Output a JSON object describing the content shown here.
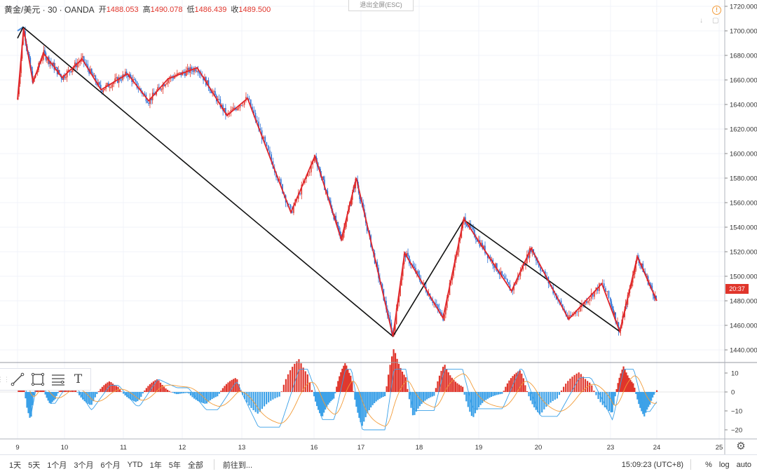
{
  "header": {
    "symbol": "黄金/美元 · 30 · OANDA",
    "ohlc": [
      {
        "label": "开",
        "value": "1488.053"
      },
      {
        "label": "高",
        "value": "1490.078"
      },
      {
        "label": "低",
        "value": "1486.439"
      },
      {
        "label": "收",
        "value": "1489.500"
      }
    ]
  },
  "exit_fullscreen_label": "退出全屏(ESC)",
  "info_icon_glyph": "!",
  "price_axis": {
    "ticks": [
      "1720.000",
      "1700.000",
      "1680.000",
      "1660.000",
      "1640.000",
      "1620.000",
      "1600.000",
      "1580.000",
      "1560.000",
      "1540.000",
      "1520.000",
      "1500.000",
      "1480.000",
      "1460.000",
      "1440.000"
    ],
    "current_price_tag": "20:37"
  },
  "indicator_axis": {
    "ticks": [
      "10",
      "0",
      "−10",
      "−20"
    ]
  },
  "time_axis": {
    "ticks": [
      "9",
      "10",
      "11",
      "12",
      "13",
      "16",
      "17",
      "18",
      "19",
      "20",
      "23",
      "24",
      "25"
    ]
  },
  "drawing_tools": [
    {
      "name": "trend-line-tool",
      "glyph": ""
    },
    {
      "name": "rectangle-tool",
      "glyph": ""
    },
    {
      "name": "fib-tool",
      "glyph": ""
    },
    {
      "name": "text-tool",
      "glyph": "T"
    }
  ],
  "bottom_bar": {
    "ranges": [
      "1天",
      "5天",
      "1个月",
      "3个月",
      "6个月",
      "YTD",
      "1年",
      "5年",
      "全部"
    ],
    "goto_label": "前往到...",
    "clock": "15:09:23 (UTC+8)",
    "options": [
      "%",
      "log",
      "auto"
    ]
  },
  "colors": {
    "up": "#e0352b",
    "down": "#2a6fd6",
    "zigzag": "#e0252b",
    "big_zigzag": "#111111",
    "accent": "#f29b38"
  },
  "chart_data": {
    "type": "candlestick",
    "instrument": "黄金/美元",
    "timeframe": "30",
    "ylim": [
      1432,
      1724
    ],
    "zigzag_red": [
      {
        "t": 0,
        "y": 1644
      },
      {
        "t": 0.13,
        "y": 1702
      },
      {
        "t": 0.33,
        "y": 1658
      },
      {
        "t": 0.55,
        "y": 1682
      },
      {
        "t": 0.95,
        "y": 1662
      },
      {
        "t": 1.3,
        "y": 1677
      },
      {
        "t": 1.62,
        "y": 1652
      },
      {
        "t": 2.07,
        "y": 1665
      },
      {
        "t": 2.43,
        "y": 1643
      },
      {
        "t": 2.76,
        "y": 1661
      },
      {
        "t": 3.25,
        "y": 1670
      },
      {
        "t": 3.75,
        "y": 1631
      },
      {
        "t": 4.08,
        "y": 1645
      },
      {
        "t": 4.68,
        "y": 1552
      },
      {
        "t": 5.02,
        "y": 1598
      },
      {
        "t": 5.58,
        "y": 1530
      },
      {
        "t": 5.9,
        "y": 1580
      },
      {
        "t": 6.55,
        "y": 1451
      },
      {
        "t": 6.75,
        "y": 1519
      },
      {
        "t": 7.4,
        "y": 1466
      },
      {
        "t": 7.75,
        "y": 1547
      },
      {
        "t": 8.55,
        "y": 1488
      },
      {
        "t": 8.88,
        "y": 1523
      },
      {
        "t": 9.42,
        "y": 1465
      },
      {
        "t": 9.88,
        "y": 1494
      },
      {
        "t": 10.2,
        "y": 1455
      },
      {
        "t": 10.58,
        "y": 1516
      },
      {
        "t": 11.0,
        "y": 1480
      }
    ],
    "zigzag_black": [
      {
        "t": 0,
        "y": 1694
      },
      {
        "t": 0.12,
        "y": 1703
      },
      {
        "t": 6.55,
        "y": 1451
      },
      {
        "t": 7.75,
        "y": 1546
      },
      {
        "t": 10.2,
        "y": 1455
      }
    ],
    "blue_overlay": [
      {
        "t": 0,
        "y": 1700
      },
      {
        "t": 0.12,
        "y": 1703
      }
    ],
    "last_close": 1489.5
  },
  "indicator_data": {
    "type": "macd",
    "ylim": [
      -25,
      15
    ]
  }
}
